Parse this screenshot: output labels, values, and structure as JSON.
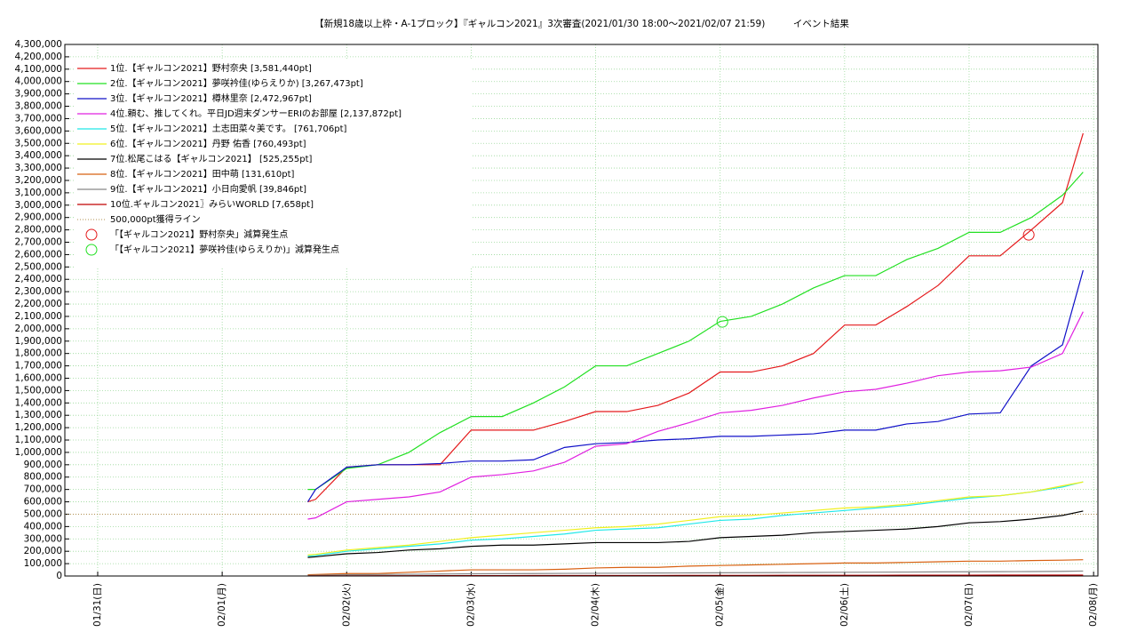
{
  "chart_data": {
    "type": "line",
    "title": "【新規18歳以上枠・A-1ブロック】『ギャルコン2021』3次審査(2021/01/30 18:00～2021/02/07 21:59)　　　イベント結果",
    "x": [
      "2021/02/01 16:30",
      "2021/02/01 18:00",
      "2021/02/02 00:00",
      "2021/02/02 06:00",
      "2021/02/02 12:00",
      "2021/02/02 18:00",
      "2021/02/03 00:00",
      "2021/02/03 06:00",
      "2021/02/03 12:00",
      "2021/02/03 18:00",
      "2021/02/04 00:00",
      "2021/02/04 06:00",
      "2021/02/04 12:00",
      "2021/02/04 18:00",
      "2021/02/05 00:00",
      "2021/02/05 06:00",
      "2021/02/05 12:00",
      "2021/02/05 18:00",
      "2021/02/06 00:00",
      "2021/02/06 06:00",
      "2021/02/06 12:00",
      "2021/02/06 18:00",
      "2021/02/07 00:00",
      "2021/02/07 06:00",
      "2021/02/07 12:00",
      "2021/02/07 18:00",
      "2021/02/07 21:59"
    ],
    "series": [
      {
        "name": "1位.【ギャルコン2021】野村奈央 [3,581,440pt]",
        "color": "#e41a1c",
        "values": [
          600000,
          620000,
          880000,
          900000,
          900000,
          900000,
          1180000,
          1180000,
          1180000,
          1250000,
          1330000,
          1330000,
          1380000,
          1480000,
          1650000,
          1650000,
          1700000,
          1800000,
          2030000,
          2030000,
          2180000,
          2350000,
          2590000,
          2590000,
          2800000,
          3020000,
          3581440
        ]
      },
      {
        "name": "2位.【ギャルコン2021】夢咲衿佳(ゆらえりか) [3,267,473pt]",
        "color": "#22e022",
        "values": [
          700000,
          700000,
          870000,
          900000,
          1000000,
          1160000,
          1290000,
          1290000,
          1400000,
          1530000,
          1700000,
          1700000,
          1800000,
          1900000,
          2060000,
          2100000,
          2200000,
          2330000,
          2430000,
          2430000,
          2560000,
          2650000,
          2780000,
          2780000,
          2900000,
          3080000,
          3267473
        ]
      },
      {
        "name": "3位.【ギャルコン2021】樽林里奈 [2,472,967pt]",
        "color": "#1010c8",
        "values": [
          600000,
          700000,
          880000,
          900000,
          900000,
          910000,
          930000,
          930000,
          940000,
          1040000,
          1070000,
          1080000,
          1100000,
          1110000,
          1130000,
          1130000,
          1140000,
          1150000,
          1180000,
          1180000,
          1230000,
          1250000,
          1310000,
          1320000,
          1700000,
          1870000,
          2472967
        ]
      },
      {
        "name": "4位.頼む、推してくれ。平日JD週末ダンサーERIのお部屋 [2,137,872pt]",
        "color": "#e020e0",
        "values": [
          460000,
          470000,
          600000,
          620000,
          640000,
          680000,
          800000,
          820000,
          850000,
          920000,
          1050000,
          1070000,
          1170000,
          1240000,
          1320000,
          1340000,
          1380000,
          1440000,
          1490000,
          1510000,
          1560000,
          1620000,
          1650000,
          1660000,
          1690000,
          1800000,
          2137872
        ]
      },
      {
        "name": "5位.【ギャルコン2021】土志田菜々美です。 [761,706pt]",
        "color": "#20e8e8",
        "values": [
          160000,
          165000,
          200000,
          220000,
          240000,
          260000,
          290000,
          300000,
          320000,
          340000,
          370000,
          380000,
          390000,
          420000,
          450000,
          460000,
          490000,
          510000,
          530000,
          550000,
          570000,
          600000,
          630000,
          650000,
          680000,
          720000,
          761706
        ]
      },
      {
        "name": "6位.【ギャルコン2021】丹野 佑香 [760,493pt]",
        "color": "#f0f020",
        "values": [
          170000,
          175000,
          210000,
          230000,
          250000,
          280000,
          310000,
          330000,
          350000,
          370000,
          390000,
          400000,
          420000,
          450000,
          480000,
          490000,
          510000,
          530000,
          550000,
          560000,
          580000,
          610000,
          640000,
          650000,
          680000,
          730000,
          760493
        ]
      },
      {
        "name": "7位.松尾こはる【ギャルコン2021】 [525,255pt]",
        "color": "#000000",
        "values": [
          150000,
          155000,
          180000,
          190000,
          210000,
          220000,
          240000,
          250000,
          250000,
          260000,
          270000,
          270000,
          270000,
          280000,
          310000,
          320000,
          330000,
          350000,
          360000,
          370000,
          380000,
          400000,
          430000,
          440000,
          460000,
          490000,
          525255
        ]
      },
      {
        "name": "8位.【ギャルコン2021】田中萌 [131,610pt]",
        "color": "#d86010",
        "values": [
          10000,
          12000,
          20000,
          20000,
          30000,
          40000,
          50000,
          50000,
          50000,
          55000,
          65000,
          70000,
          70000,
          80000,
          85000,
          90000,
          95000,
          100000,
          105000,
          105000,
          110000,
          115000,
          120000,
          120000,
          125000,
          128000,
          131610
        ]
      },
      {
        "name": "9位.【ギャルコン2021】小日向愛帆 [39,846pt]",
        "color": "#888888",
        "values": [
          5000,
          6000,
          10000,
          12000,
          14000,
          16000,
          18000,
          19000,
          20000,
          21000,
          22000,
          23000,
          24000,
          25000,
          26000,
          27000,
          28000,
          29000,
          30000,
          31000,
          32000,
          33000,
          34000,
          35000,
          36000,
          38000,
          39846
        ]
      },
      {
        "name": "10位.ギャルコン2021〗みらいWORLD [7,658pt]",
        "color": "#c00000",
        "values": [
          1000,
          1100,
          1500,
          2000,
          2300,
          2600,
          3000,
          3200,
          3400,
          3600,
          3800,
          4000,
          4200,
          4400,
          4700,
          5000,
          5200,
          5400,
          5700,
          6000,
          6200,
          6500,
          6800,
          7000,
          7200,
          7400,
          7658
        ]
      }
    ],
    "target_line": {
      "name": "500,000pt獲得ライン",
      "value": 500000,
      "color": "#b09050"
    },
    "markers": [
      {
        "name": "「【ギャルコン2021】野村奈央」減算発生点",
        "color": "#e41a1c",
        "x": "2021/02/07 11:30",
        "y": 2760000
      },
      {
        "name": "「【ギャルコン2021】夢咲衿佳(ゆらえりか)」減算発生点",
        "color": "#22e022",
        "x": "2021/02/05 00:26",
        "y": 2056000
      }
    ],
    "xlim": [
      "2021/01/30 17:40",
      "2021/02/08 00:50"
    ],
    "xticks": [
      {
        "value": "2021/01/31 00:00",
        "label": "01/31(日)"
      },
      {
        "value": "2021/02/01 00:00",
        "label": "02/01(月)"
      },
      {
        "value": "2021/02/02 00:00",
        "label": "02/02(火)"
      },
      {
        "value": "2021/02/03 00:00",
        "label": "02/03(水)"
      },
      {
        "value": "2021/02/04 00:00",
        "label": "02/04(木)"
      },
      {
        "value": "2021/02/05 00:00",
        "label": "02/05(金)"
      },
      {
        "value": "2021/02/06 00:00",
        "label": "02/06(土)"
      },
      {
        "value": "2021/02/07 00:00",
        "label": "02/07(日)"
      },
      {
        "value": "2021/02/08 00:00",
        "label": "02/08(月)"
      }
    ],
    "ylim": [
      0,
      4300000
    ],
    "yticks": [
      0,
      {
        "value": 100000,
        "label": "100,000"
      },
      {
        "value": 200000,
        "label": "200,000"
      },
      {
        "value": 300000,
        "label": "300,000"
      },
      {
        "value": 400000,
        "label": "400,000"
      },
      {
        "value": 500000,
        "label": "500,000"
      },
      {
        "value": 600000,
        "label": "600,000"
      },
      {
        "value": 700000,
        "label": "700,000"
      },
      {
        "value": 800000,
        "label": "800,000"
      },
      {
        "value": 900000,
        "label": "900,000"
      },
      {
        "value": 1000000,
        "label": "1,000,000"
      },
      {
        "value": 1100000,
        "label": "1,100,000"
      },
      {
        "value": 1200000,
        "label": "1,200,000"
      },
      {
        "value": 1300000,
        "label": "1,300,000"
      },
      {
        "value": 1400000,
        "label": "1,400,000"
      },
      {
        "value": 1500000,
        "label": "1,500,000"
      },
      {
        "value": 1600000,
        "label": "1,600,000"
      },
      {
        "value": 1700000,
        "label": "1,700,000"
      },
      {
        "value": 1800000,
        "label": "1,800,000"
      },
      {
        "value": 1900000,
        "label": "1,900,000"
      },
      {
        "value": 2000000,
        "label": "2,000,000"
      },
      {
        "value": 2100000,
        "label": "2,100,000"
      },
      {
        "value": 2200000,
        "label": "2,200,000"
      },
      {
        "value": 2300000,
        "label": "2,300,000"
      },
      {
        "value": 2400000,
        "label": "2,400,000"
      },
      {
        "value": 2500000,
        "label": "2,500,000"
      },
      {
        "value": 2600000,
        "label": "2,600,000"
      },
      {
        "value": 2700000,
        "label": "2,700,000"
      },
      {
        "value": 2800000,
        "label": "2,800,000"
      },
      {
        "value": 2900000,
        "label": "2,900,000"
      },
      {
        "value": 3000000,
        "label": "3,000,000"
      },
      {
        "value": 3100000,
        "label": "3,100,000"
      },
      {
        "value": 3200000,
        "label": "3,200,000"
      },
      {
        "value": 3300000,
        "label": "3,300,000"
      },
      {
        "value": 3400000,
        "label": "3,400,000"
      },
      {
        "value": 3500000,
        "label": "3,500,000"
      },
      {
        "value": 3600000,
        "label": "3,600,000"
      },
      {
        "value": 3700000,
        "label": "3,700,000"
      },
      {
        "value": 3800000,
        "label": "3,800,000"
      },
      {
        "value": 3900000,
        "label": "3,900,000"
      },
      {
        "value": 4000000,
        "label": "4,000,000"
      },
      {
        "value": 4100000,
        "label": "4,100,000"
      },
      {
        "value": 4200000,
        "label": "4,200,000"
      },
      {
        "value": 4300000,
        "label": "4,300,000"
      }
    ],
    "grid": true,
    "legend": "upper left"
  }
}
